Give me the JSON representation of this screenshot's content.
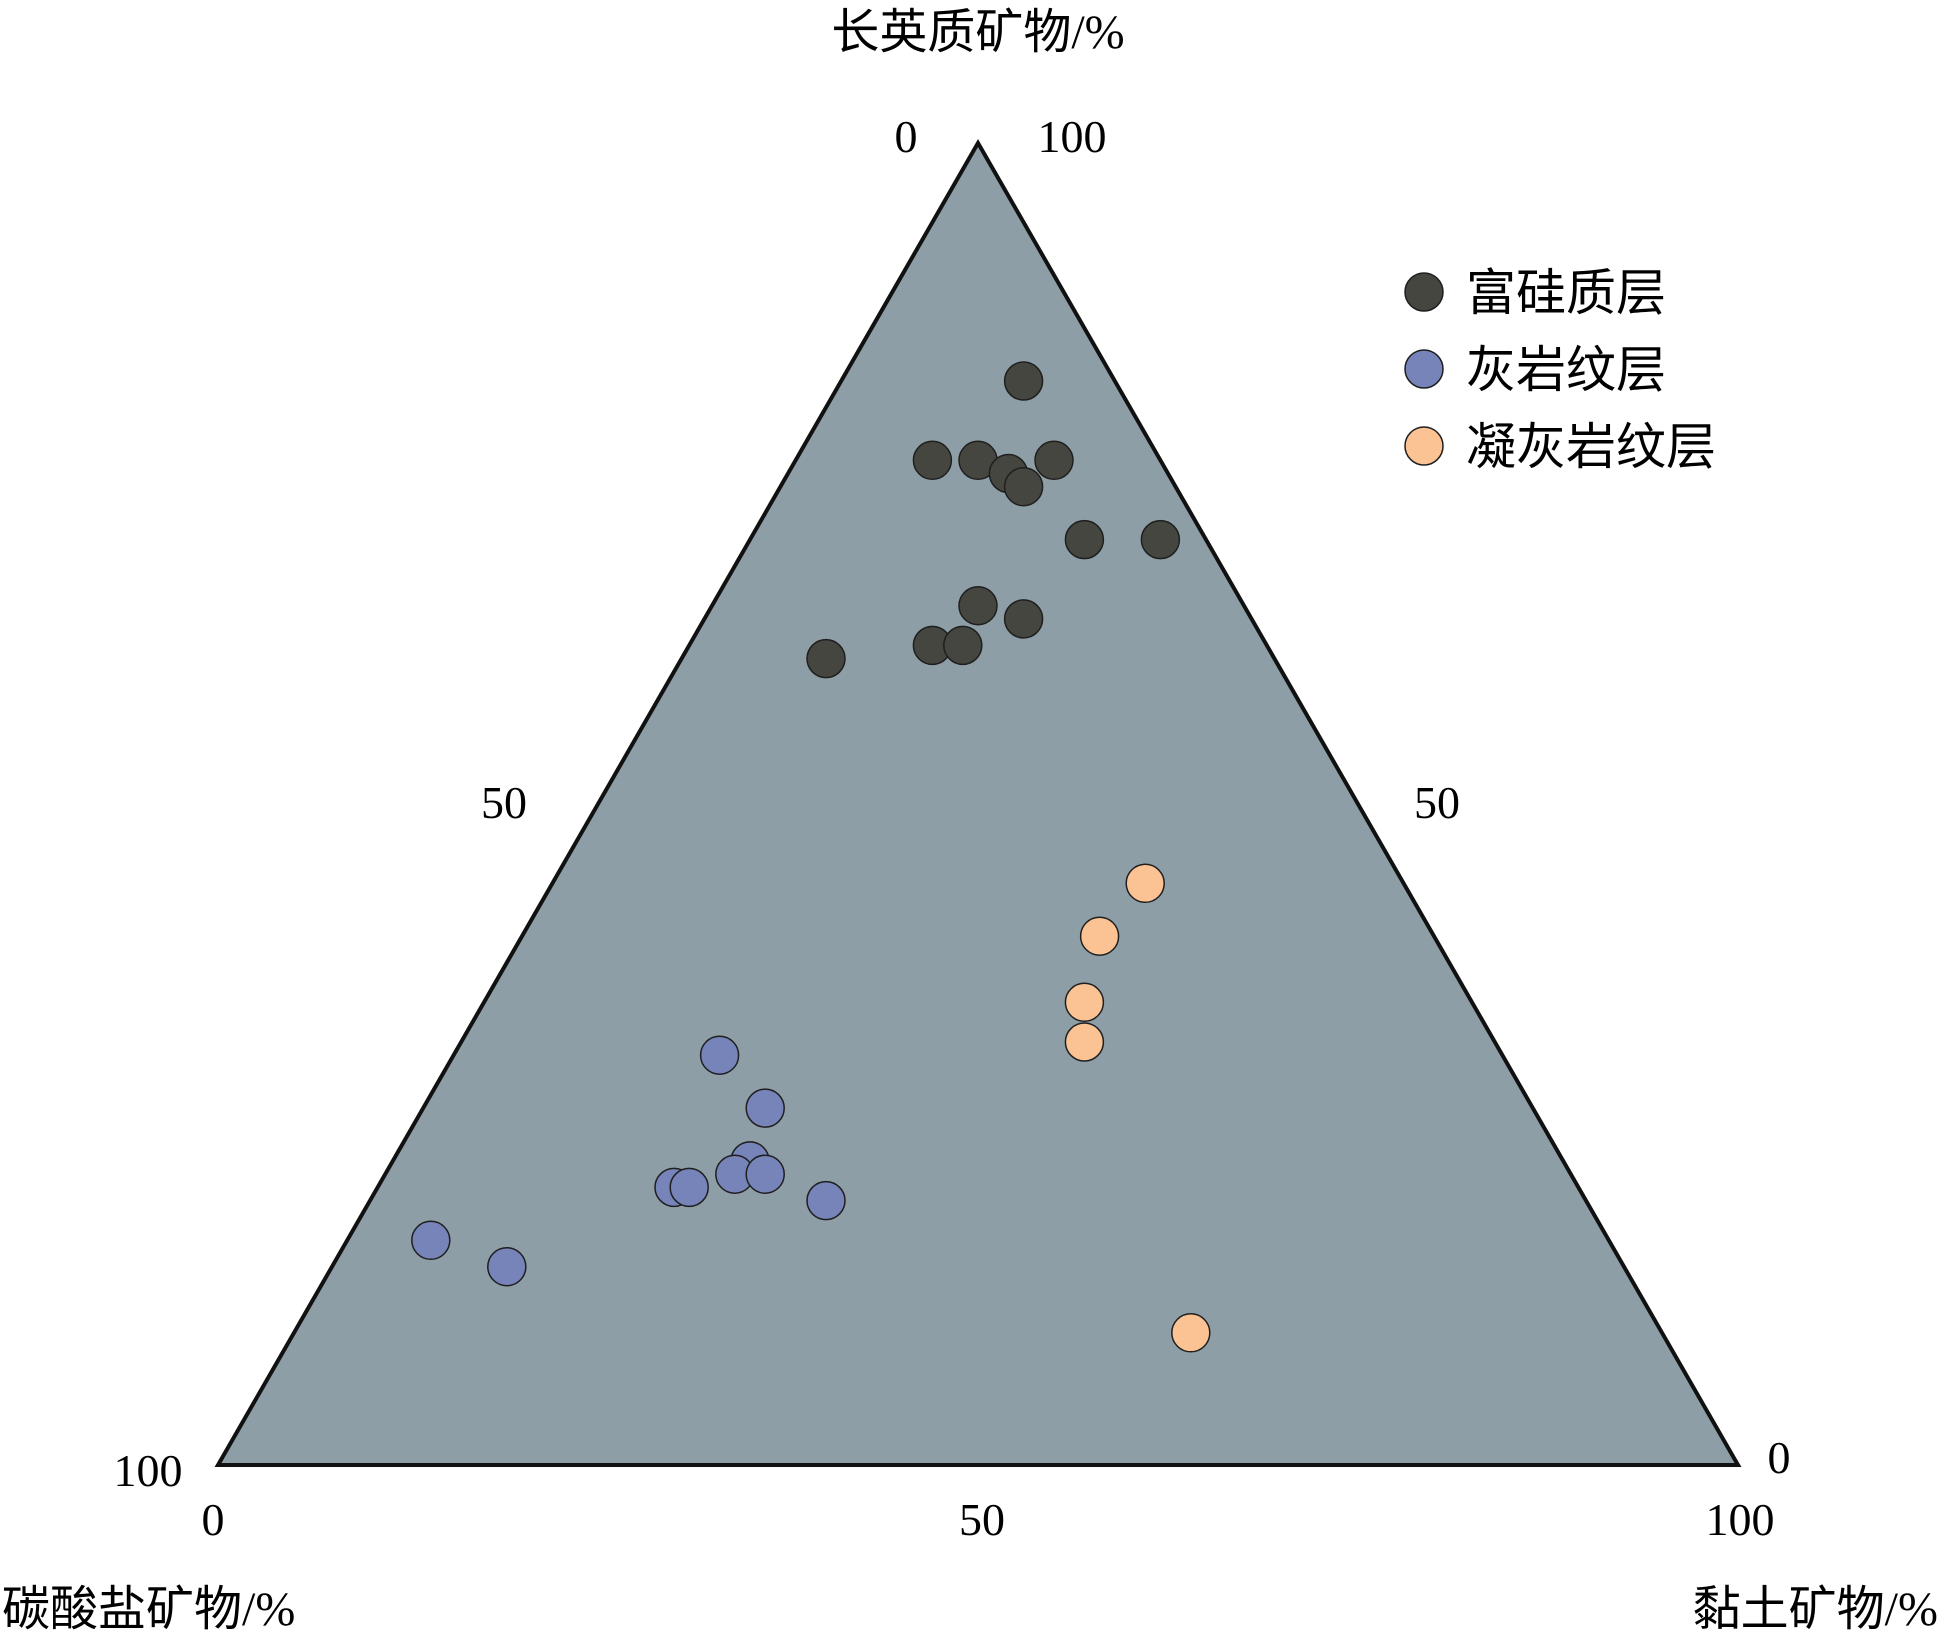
{
  "chart_data": {
    "type": "scatter",
    "subtype": "ternary",
    "title": "",
    "axes": {
      "top": {
        "label": "长英质矿物/%",
        "ticks": [
          "0",
          "100"
        ]
      },
      "left": {
        "label": "碳酸盐矿物/%",
        "ticks": [
          "50",
          "100"
        ]
      },
      "right": {
        "label": "黏土矿物/%",
        "ticks": [
          "50",
          "0"
        ]
      },
      "bottom": {
        "ticks": [
          "0",
          "50",
          "100"
        ]
      }
    },
    "component_range": [
      0,
      100
    ],
    "plot_area_color": "#8e9ea6",
    "legend": {
      "position": "top-right"
    },
    "series": [
      {
        "name": "富硅质层",
        "color": "#44463f",
        "points": [
          {
            "x": 53,
            "y": 82
          },
          {
            "x": 47,
            "y": 76
          },
          {
            "x": 50,
            "y": 76
          },
          {
            "x": 55,
            "y": 76
          },
          {
            "x": 52,
            "y": 75
          },
          {
            "x": 53,
            "y": 74
          },
          {
            "x": 57,
            "y": 70
          },
          {
            "x": 62,
            "y": 70
          },
          {
            "x": 50,
            "y": 65
          },
          {
            "x": 53,
            "y": 64
          },
          {
            "x": 40,
            "y": 61
          },
          {
            "x": 47,
            "y": 62
          },
          {
            "x": 49,
            "y": 62
          }
        ]
      },
      {
        "name": "灰岩纹层",
        "color": "#7684b9",
        "points": [
          {
            "x": 33,
            "y": 31
          },
          {
            "x": 36,
            "y": 27
          },
          {
            "x": 35,
            "y": 23
          },
          {
            "x": 34,
            "y": 22
          },
          {
            "x": 36,
            "y": 22
          },
          {
            "x": 30,
            "y": 21
          },
          {
            "x": 31,
            "y": 21
          },
          {
            "x": 40,
            "y": 20
          },
          {
            "x": 14,
            "y": 17
          },
          {
            "x": 19,
            "y": 15
          }
        ]
      },
      {
        "name": "凝灰岩纹层",
        "color": "#fbc394",
        "points": [
          {
            "x": 61,
            "y": 44
          },
          {
            "x": 58,
            "y": 40
          },
          {
            "x": 57,
            "y": 35
          },
          {
            "x": 57,
            "y": 32
          },
          {
            "x": 64,
            "y": 10
          }
        ]
      }
    ]
  }
}
